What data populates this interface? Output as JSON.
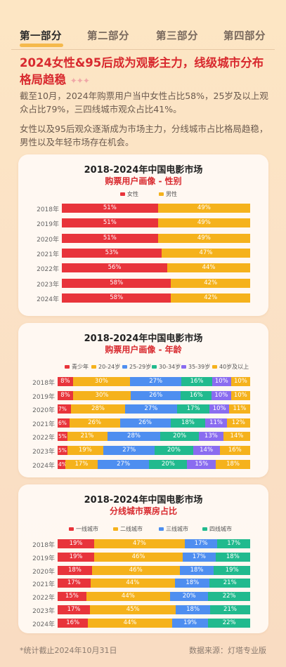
{
  "tabs": [
    "第一部分",
    "第二部分",
    "第三部分",
    "第四部分"
  ],
  "active_tab": 0,
  "headline": "2024女性&95后成为观影主力，线级城市分布格局趋稳",
  "headline_sparkle": "✦✦✦",
  "para1": "截至10月，2024年购票用户当中女性占比58%，25岁及以上观众占比79%，三四线城市观众占比41%。",
  "para2": "女性以及95后观众逐渐成为市场主力，分线城市占比格局趋稳，男性以及年轻市场存在机会。",
  "colors": {
    "red": "#e8343b",
    "yellow": "#f5b21c",
    "blue": "#4e8ef0",
    "teal": "#21ba8e",
    "purple": "#8a6cf0",
    "headline": "#d8292e"
  },
  "chart_data": [
    {
      "type": "bar",
      "stacked": true,
      "orientation": "horizontal",
      "title": "2018-2024年中国电影市场",
      "subtitle": "购票用户画像 - 性别",
      "categories": [
        "2018年",
        "2019年",
        "2020年",
        "2021年",
        "2022年",
        "2023年",
        "2024年"
      ],
      "series": [
        {
          "name": "女性",
          "color": "#e8343b",
          "values": [
            51,
            51,
            51,
            53,
            56,
            58,
            58
          ]
        },
        {
          "name": "男性",
          "color": "#f5b21c",
          "values": [
            49,
            49,
            49,
            47,
            44,
            42,
            42
          ]
        }
      ],
      "unit": "%"
    },
    {
      "type": "bar",
      "stacked": true,
      "orientation": "horizontal",
      "title": "2018-2024年中国电影市场",
      "subtitle": "购票用户画像 - 年龄",
      "categories": [
        "2018年",
        "2019年",
        "2020年",
        "2021年",
        "2022年",
        "2023年",
        "2024年"
      ],
      "series": [
        {
          "name": "青少年",
          "color": "#e8343b",
          "values": [
            8,
            8,
            7,
            6,
            5,
            5,
            4
          ]
        },
        {
          "name": "20-24岁",
          "color": "#f5b21c",
          "values": [
            30,
            30,
            28,
            26,
            21,
            19,
            17
          ]
        },
        {
          "name": "25-29岁",
          "color": "#4e8ef0",
          "values": [
            27,
            26,
            27,
            26,
            28,
            27,
            27
          ]
        },
        {
          "name": "30-34岁",
          "color": "#21ba8e",
          "values": [
            16,
            16,
            17,
            18,
            20,
            20,
            20
          ]
        },
        {
          "name": "35-39岁",
          "color": "#8a6cf0",
          "values": [
            10,
            10,
            10,
            11,
            13,
            14,
            15
          ]
        },
        {
          "name": "40岁及以上",
          "color": "#f5b21c",
          "values": [
            10,
            10,
            11,
            12,
            14,
            16,
            18
          ]
        }
      ],
      "unit": "%"
    },
    {
      "type": "bar",
      "stacked": true,
      "orientation": "horizontal",
      "title": "2018-2024年中国电影市场",
      "subtitle": "分线城市票房占比",
      "categories": [
        "2018年",
        "2019年",
        "2020年",
        "2021年",
        "2022年",
        "2023年",
        "2024年"
      ],
      "series": [
        {
          "name": "一线城市",
          "color": "#e8343b",
          "values": [
            19,
            19,
            18,
            17,
            15,
            17,
            16
          ]
        },
        {
          "name": "二线城市",
          "color": "#f5b21c",
          "values": [
            47,
            46,
            46,
            44,
            44,
            45,
            44
          ]
        },
        {
          "name": "三线城市",
          "color": "#4e8ef0",
          "values": [
            17,
            17,
            18,
            18,
            20,
            18,
            19
          ]
        },
        {
          "name": "四线城市",
          "color": "#21ba8e",
          "values": [
            17,
            18,
            19,
            21,
            22,
            21,
            22
          ]
        }
      ],
      "unit": "%"
    }
  ],
  "footer_left": "*统计截止2024年10月31日",
  "footer_right": "数据来源：灯塔专业版"
}
